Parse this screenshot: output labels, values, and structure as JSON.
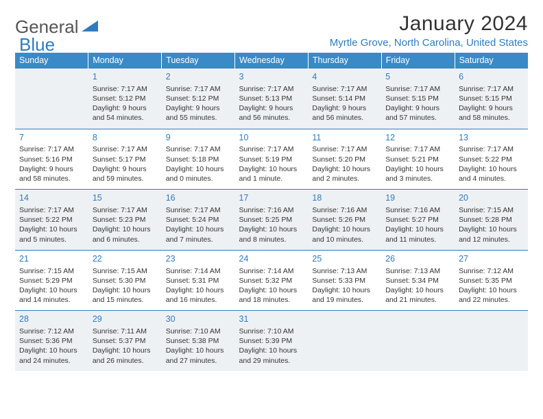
{
  "logo": {
    "word1": "General",
    "word2": "Blue",
    "triangle_color": "#2f7bbf"
  },
  "title": "January 2024",
  "location": "Myrtle Grove, North Carolina, United States",
  "colors": {
    "header_bg": "#3a8ac8",
    "header_text": "#ffffff",
    "accent": "#2f7bbf",
    "alt_row_bg": "#eef1f3",
    "text": "#333333"
  },
  "weekdays": [
    "Sunday",
    "Monday",
    "Tuesday",
    "Wednesday",
    "Thursday",
    "Friday",
    "Saturday"
  ],
  "weeks": [
    [
      null,
      {
        "d": "1",
        "sr": "Sunrise: 7:17 AM",
        "ss": "Sunset: 5:12 PM",
        "dl1": "Daylight: 9 hours",
        "dl2": "and 54 minutes."
      },
      {
        "d": "2",
        "sr": "Sunrise: 7:17 AM",
        "ss": "Sunset: 5:12 PM",
        "dl1": "Daylight: 9 hours",
        "dl2": "and 55 minutes."
      },
      {
        "d": "3",
        "sr": "Sunrise: 7:17 AM",
        "ss": "Sunset: 5:13 PM",
        "dl1": "Daylight: 9 hours",
        "dl2": "and 56 minutes."
      },
      {
        "d": "4",
        "sr": "Sunrise: 7:17 AM",
        "ss": "Sunset: 5:14 PM",
        "dl1": "Daylight: 9 hours",
        "dl2": "and 56 minutes."
      },
      {
        "d": "5",
        "sr": "Sunrise: 7:17 AM",
        "ss": "Sunset: 5:15 PM",
        "dl1": "Daylight: 9 hours",
        "dl2": "and 57 minutes."
      },
      {
        "d": "6",
        "sr": "Sunrise: 7:17 AM",
        "ss": "Sunset: 5:15 PM",
        "dl1": "Daylight: 9 hours",
        "dl2": "and 58 minutes."
      }
    ],
    [
      {
        "d": "7",
        "sr": "Sunrise: 7:17 AM",
        "ss": "Sunset: 5:16 PM",
        "dl1": "Daylight: 9 hours",
        "dl2": "and 58 minutes."
      },
      {
        "d": "8",
        "sr": "Sunrise: 7:17 AM",
        "ss": "Sunset: 5:17 PM",
        "dl1": "Daylight: 9 hours",
        "dl2": "and 59 minutes."
      },
      {
        "d": "9",
        "sr": "Sunrise: 7:17 AM",
        "ss": "Sunset: 5:18 PM",
        "dl1": "Daylight: 10 hours",
        "dl2": "and 0 minutes."
      },
      {
        "d": "10",
        "sr": "Sunrise: 7:17 AM",
        "ss": "Sunset: 5:19 PM",
        "dl1": "Daylight: 10 hours",
        "dl2": "and 1 minute."
      },
      {
        "d": "11",
        "sr": "Sunrise: 7:17 AM",
        "ss": "Sunset: 5:20 PM",
        "dl1": "Daylight: 10 hours",
        "dl2": "and 2 minutes."
      },
      {
        "d": "12",
        "sr": "Sunrise: 7:17 AM",
        "ss": "Sunset: 5:21 PM",
        "dl1": "Daylight: 10 hours",
        "dl2": "and 3 minutes."
      },
      {
        "d": "13",
        "sr": "Sunrise: 7:17 AM",
        "ss": "Sunset: 5:22 PM",
        "dl1": "Daylight: 10 hours",
        "dl2": "and 4 minutes."
      }
    ],
    [
      {
        "d": "14",
        "sr": "Sunrise: 7:17 AM",
        "ss": "Sunset: 5:22 PM",
        "dl1": "Daylight: 10 hours",
        "dl2": "and 5 minutes."
      },
      {
        "d": "15",
        "sr": "Sunrise: 7:17 AM",
        "ss": "Sunset: 5:23 PM",
        "dl1": "Daylight: 10 hours",
        "dl2": "and 6 minutes."
      },
      {
        "d": "16",
        "sr": "Sunrise: 7:17 AM",
        "ss": "Sunset: 5:24 PM",
        "dl1": "Daylight: 10 hours",
        "dl2": "and 7 minutes."
      },
      {
        "d": "17",
        "sr": "Sunrise: 7:16 AM",
        "ss": "Sunset: 5:25 PM",
        "dl1": "Daylight: 10 hours",
        "dl2": "and 8 minutes."
      },
      {
        "d": "18",
        "sr": "Sunrise: 7:16 AM",
        "ss": "Sunset: 5:26 PM",
        "dl1": "Daylight: 10 hours",
        "dl2": "and 10 minutes."
      },
      {
        "d": "19",
        "sr": "Sunrise: 7:16 AM",
        "ss": "Sunset: 5:27 PM",
        "dl1": "Daylight: 10 hours",
        "dl2": "and 11 minutes."
      },
      {
        "d": "20",
        "sr": "Sunrise: 7:15 AM",
        "ss": "Sunset: 5:28 PM",
        "dl1": "Daylight: 10 hours",
        "dl2": "and 12 minutes."
      }
    ],
    [
      {
        "d": "21",
        "sr": "Sunrise: 7:15 AM",
        "ss": "Sunset: 5:29 PM",
        "dl1": "Daylight: 10 hours",
        "dl2": "and 14 minutes."
      },
      {
        "d": "22",
        "sr": "Sunrise: 7:15 AM",
        "ss": "Sunset: 5:30 PM",
        "dl1": "Daylight: 10 hours",
        "dl2": "and 15 minutes."
      },
      {
        "d": "23",
        "sr": "Sunrise: 7:14 AM",
        "ss": "Sunset: 5:31 PM",
        "dl1": "Daylight: 10 hours",
        "dl2": "and 16 minutes."
      },
      {
        "d": "24",
        "sr": "Sunrise: 7:14 AM",
        "ss": "Sunset: 5:32 PM",
        "dl1": "Daylight: 10 hours",
        "dl2": "and 18 minutes."
      },
      {
        "d": "25",
        "sr": "Sunrise: 7:13 AM",
        "ss": "Sunset: 5:33 PM",
        "dl1": "Daylight: 10 hours",
        "dl2": "and 19 minutes."
      },
      {
        "d": "26",
        "sr": "Sunrise: 7:13 AM",
        "ss": "Sunset: 5:34 PM",
        "dl1": "Daylight: 10 hours",
        "dl2": "and 21 minutes."
      },
      {
        "d": "27",
        "sr": "Sunrise: 7:12 AM",
        "ss": "Sunset: 5:35 PM",
        "dl1": "Daylight: 10 hours",
        "dl2": "and 22 minutes."
      }
    ],
    [
      {
        "d": "28",
        "sr": "Sunrise: 7:12 AM",
        "ss": "Sunset: 5:36 PM",
        "dl1": "Daylight: 10 hours",
        "dl2": "and 24 minutes."
      },
      {
        "d": "29",
        "sr": "Sunrise: 7:11 AM",
        "ss": "Sunset: 5:37 PM",
        "dl1": "Daylight: 10 hours",
        "dl2": "and 26 minutes."
      },
      {
        "d": "30",
        "sr": "Sunrise: 7:10 AM",
        "ss": "Sunset: 5:38 PM",
        "dl1": "Daylight: 10 hours",
        "dl2": "and 27 minutes."
      },
      {
        "d": "31",
        "sr": "Sunrise: 7:10 AM",
        "ss": "Sunset: 5:39 PM",
        "dl1": "Daylight: 10 hours",
        "dl2": "and 29 minutes."
      },
      null,
      null,
      null
    ]
  ]
}
